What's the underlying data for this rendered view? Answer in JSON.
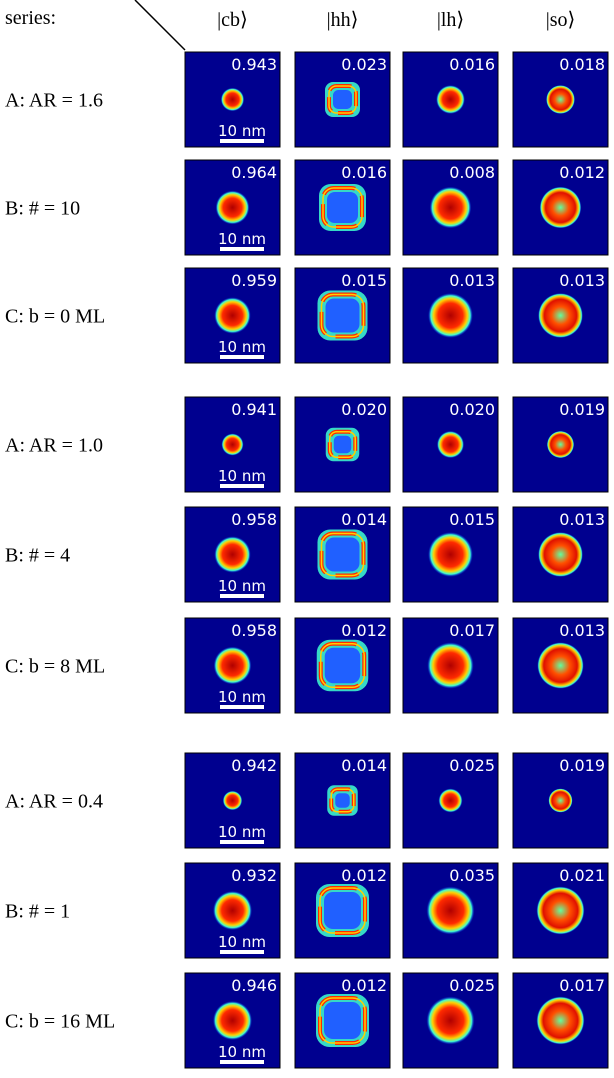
{
  "header": {
    "corner": "series:",
    "columns": [
      "|cb⟩",
      "|hh⟩",
      "|lh⟩",
      "|so⟩"
    ]
  },
  "scale_bar_label": "10 nm",
  "rows": [
    {
      "label": "A: AR = 1.6",
      "values": [
        "0.943",
        "0.023",
        "0.016",
        "0.018"
      ]
    },
    {
      "label": "B: # = 10",
      "values": [
        "0.964",
        "0.016",
        "0.008",
        "0.012"
      ]
    },
    {
      "label": "C: b = 0 ML",
      "values": [
        "0.959",
        "0.015",
        "0.013",
        "0.013"
      ]
    },
    {
      "label": "A: AR = 1.0",
      "values": [
        "0.941",
        "0.020",
        "0.020",
        "0.019"
      ]
    },
    {
      "label": "B: # = 4",
      "values": [
        "0.958",
        "0.014",
        "0.015",
        "0.013"
      ]
    },
    {
      "label": "C: b = 8 ML",
      "values": [
        "0.958",
        "0.012",
        "0.017",
        "0.013"
      ]
    },
    {
      "label": "A: AR = 0.4",
      "values": [
        "0.942",
        "0.014",
        "0.025",
        "0.019"
      ]
    },
    {
      "label": "B: # = 1",
      "values": [
        "0.932",
        "0.012",
        "0.035",
        "0.021"
      ]
    },
    {
      "label": "C: b = 16 ML",
      "values": [
        "0.946",
        "0.012",
        "0.025",
        "0.017"
      ]
    }
  ]
}
